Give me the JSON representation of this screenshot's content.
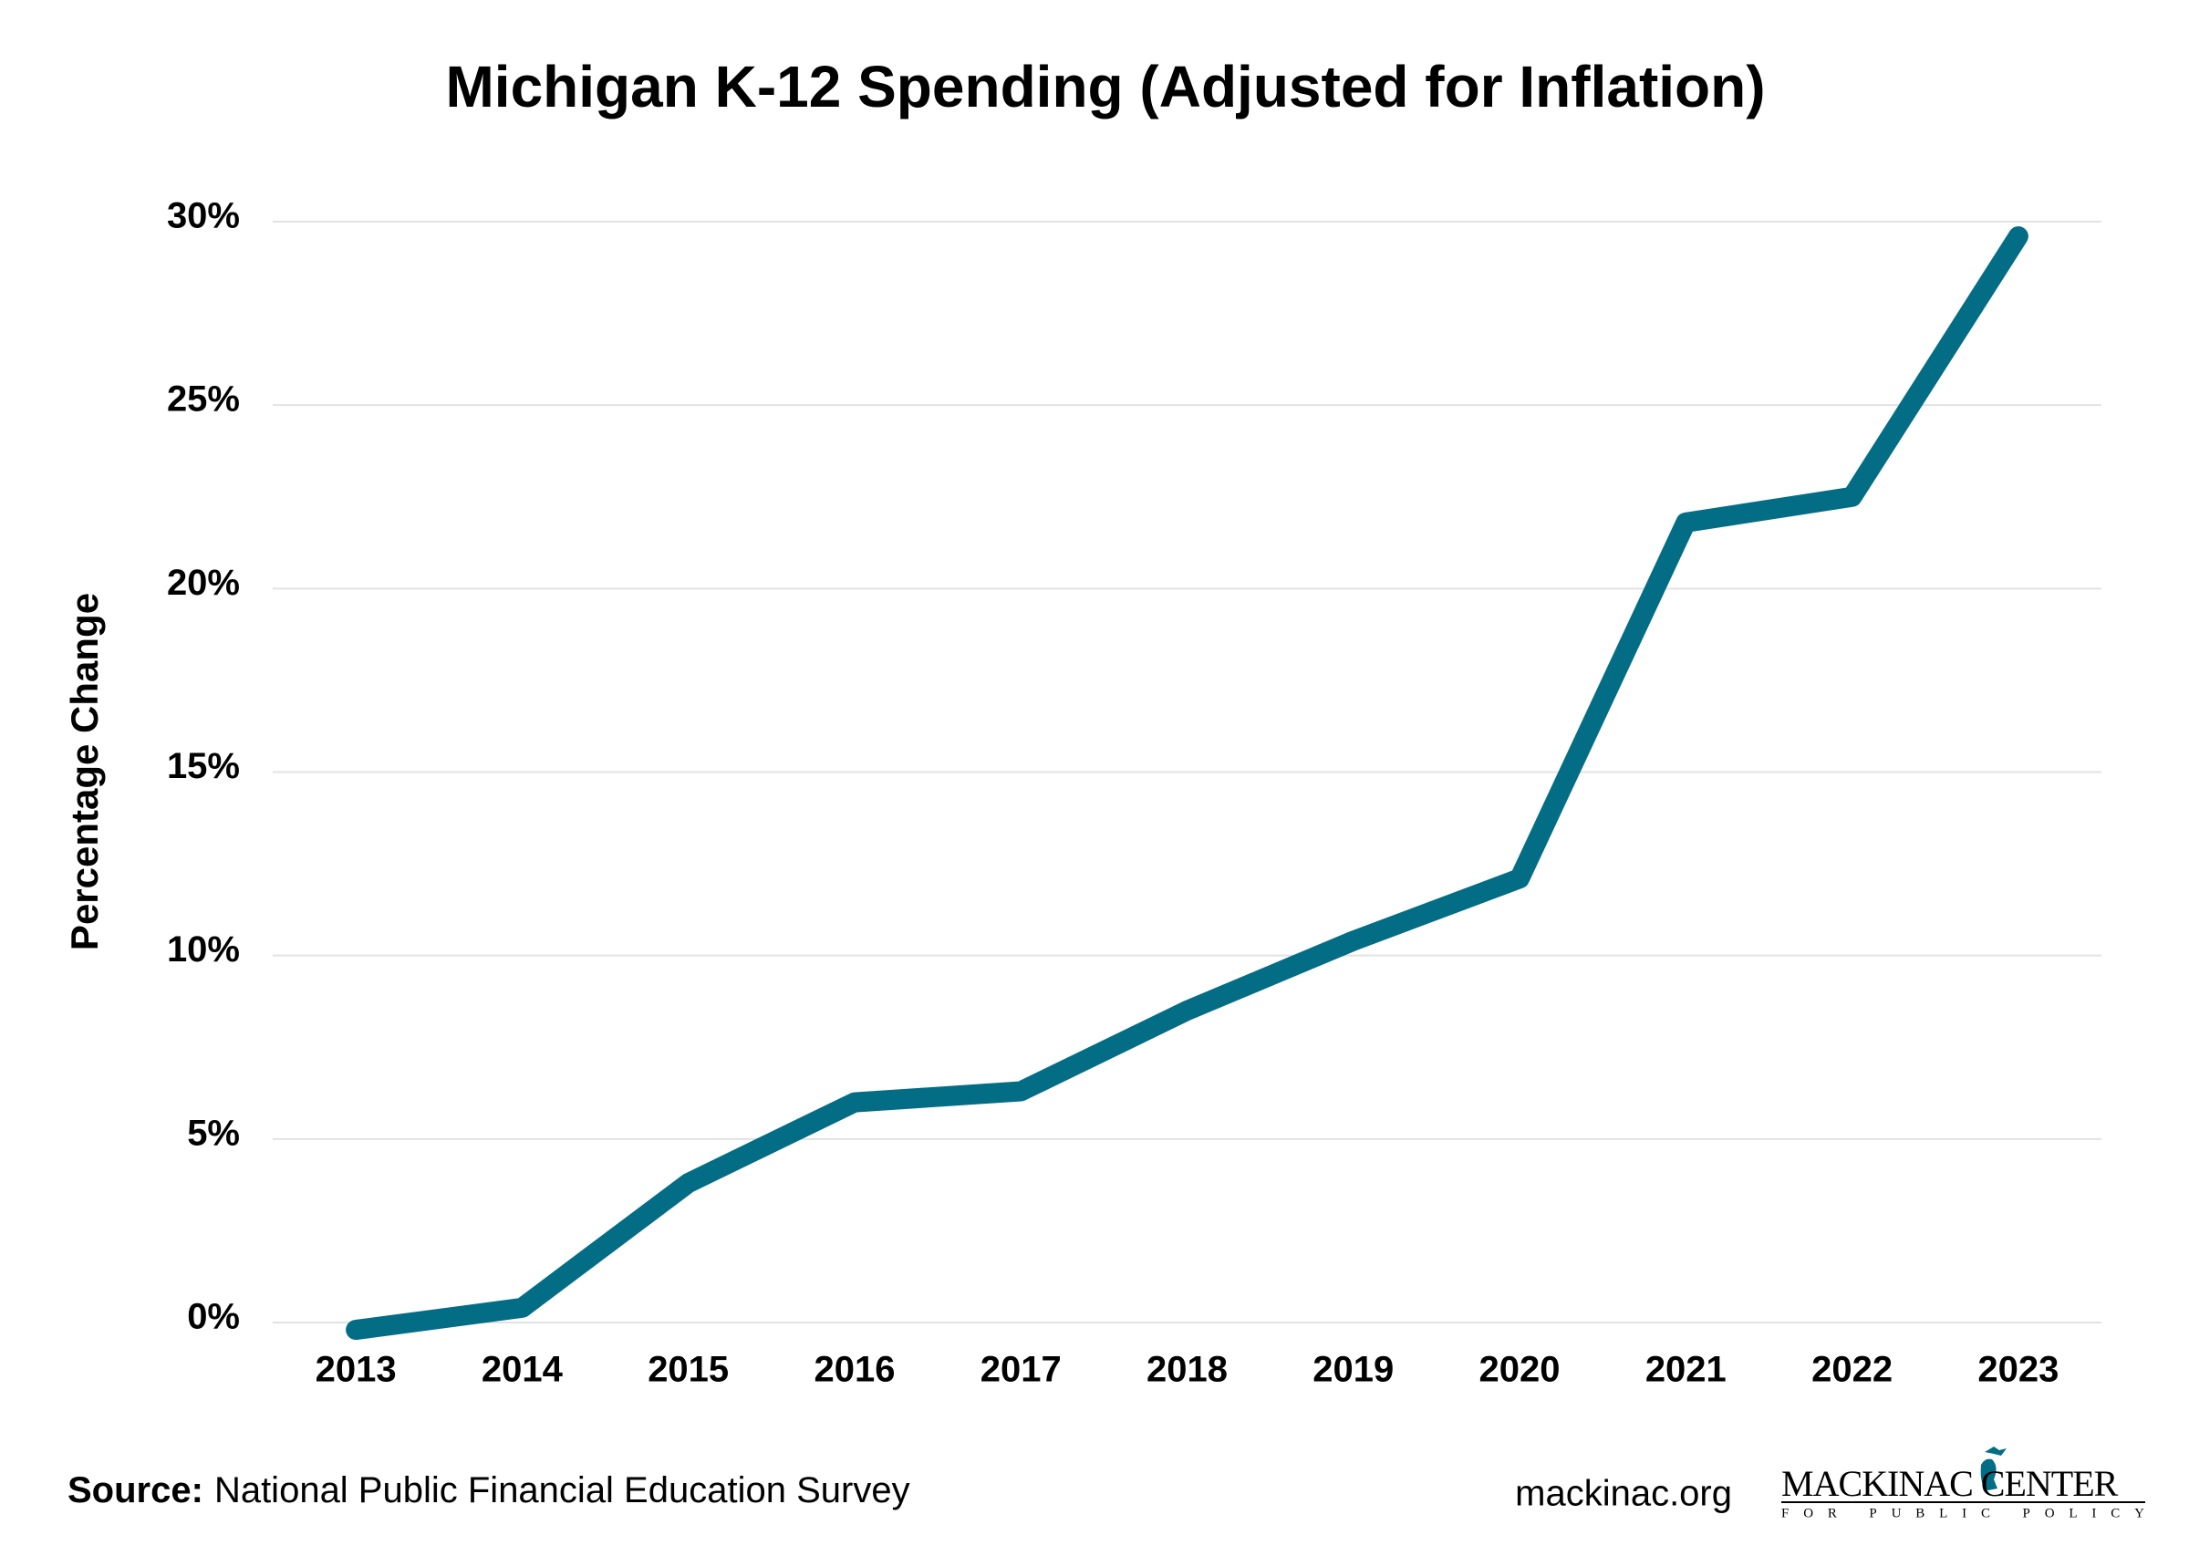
{
  "chart_data": {
    "type": "line",
    "title": "Michigan K-12 Spending (Adjusted for Inflation)",
    "y_label": "Percentage Change",
    "categories": [
      "2013",
      "2014",
      "2015",
      "2016",
      "2017",
      "2018",
      "2019",
      "2020",
      "2021",
      "2022",
      "2023"
    ],
    "series": [
      {
        "name": "Michigan K-12 Spending",
        "color": "#046d86",
        "values": [
          -0.2,
          0.4,
          3.8,
          6.0,
          6.3,
          8.5,
          10.4,
          12.1,
          21.8,
          22.5,
          29.6
        ]
      }
    ],
    "ylim": [
      0,
      30
    ],
    "yticks": [
      {
        "value": 0,
        "label": "0%"
      },
      {
        "value": 5,
        "label": "5%"
      },
      {
        "value": 10,
        "label": "10%"
      },
      {
        "value": 15,
        "label": "15%"
      },
      {
        "value": 20,
        "label": "20%"
      },
      {
        "value": 25,
        "label": "25%"
      },
      {
        "value": 30,
        "label": "30%"
      }
    ],
    "grid": true,
    "source_label": "Source:",
    "source": "National Public Financial Education Survey",
    "website": "mackinac.org",
    "logo": {
      "name": "MACKINAC CENTER",
      "tagline": "FOR PUBLIC POLICY"
    }
  }
}
